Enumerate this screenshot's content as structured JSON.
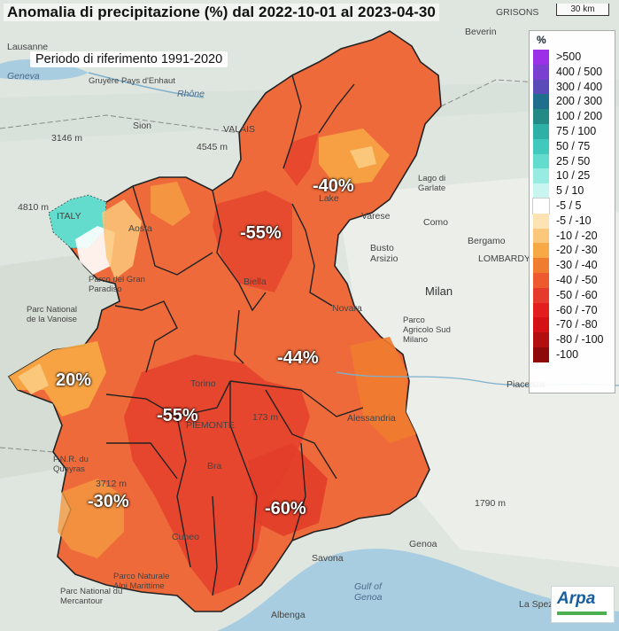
{
  "map": {
    "title": "Anomalia di precipitazione (%) dal 2022-10-01 al 2023-04-30",
    "reference_period": "Periodo di riferimento 1991-2020",
    "scale_bar": "30 km"
  },
  "legend": {
    "header": "%",
    "classes": [
      {
        "label": ">500",
        "color": "#9b30e8"
      },
      {
        "label": "400 / 500",
        "color": "#7b3fd0"
      },
      {
        "label": "300 / 400",
        "color": "#5a4bb8"
      },
      {
        "label": "200 / 300",
        "color": "#1f6e8c"
      },
      {
        "label": "100 / 200",
        "color": "#238a86"
      },
      {
        "label": "75 / 100",
        "color": "#2fb0a6"
      },
      {
        "label": "50 / 75",
        "color": "#40c9bc"
      },
      {
        "label": "25 / 50",
        "color": "#63dccd"
      },
      {
        "label": "10 / 25",
        "color": "#97ebe0"
      },
      {
        "label": "5 / 10",
        "color": "#c8f5ef"
      },
      {
        "label": "-5 / 5",
        "color": "#ffffff"
      },
      {
        "label": "-5 / -10",
        "color": "#fde2b4"
      },
      {
        "label": "-10 / -20",
        "color": "#fbc77a"
      },
      {
        "label": "-20 / -30",
        "color": "#f7a945"
      },
      {
        "label": "-30 / -40",
        "color": "#f07c2f"
      },
      {
        "label": "-40 / -50",
        "color": "#ec5a2e"
      },
      {
        "label": "-50 / -60",
        "color": "#e63b2c"
      },
      {
        "label": "-60 / -70",
        "color": "#e31e1e"
      },
      {
        "label": "-70 / -80",
        "color": "#d41216"
      },
      {
        "label": "-80 / -100",
        "color": "#b30f10"
      },
      {
        "label": "-100",
        "color": "#8e0a0a"
      }
    ]
  },
  "anomaly_labels": [
    {
      "text": "-40%"
    },
    {
      "text": "-55%"
    },
    {
      "text": "-44%"
    },
    {
      "text": "20%"
    },
    {
      "text": "-55%"
    },
    {
      "text": "-30%"
    },
    {
      "text": "-60%"
    }
  ],
  "places": [
    "GRISONS",
    "Lausanne",
    "Geneva",
    "Gruyère Pays d'Enhaut",
    "Sion",
    "VALAIS",
    "Rhône",
    "3146 m",
    "4545 m",
    "4810 m",
    "Aosta",
    "ITALY",
    "Biella",
    "Varese",
    "Lake",
    "Como",
    "Busto Arsizio",
    "Bergamo",
    "LOMBARDY",
    "Milan",
    "Novara",
    "Parco Agricolo Sud Milano",
    "Parc National de la Vanoise",
    "Torino",
    "Alessandria",
    "PIEMONTE",
    "173 m",
    "P.N.R. du Queyras",
    "3712 m",
    "Cuneo",
    "Bra",
    "Parc National du Mercantour",
    "Parco Naturale Alpi Marittime",
    "Savona",
    "Genoa",
    "Gulf of Genoa",
    "Albenga",
    "La Spezia",
    "1790 m",
    "Piacenza",
    "Beverin",
    "Lago di Garlate",
    "Parco del Gran Paradiso"
  ],
  "logo": {
    "text": "Arpa",
    "icon": "arpa-logo-icon"
  }
}
